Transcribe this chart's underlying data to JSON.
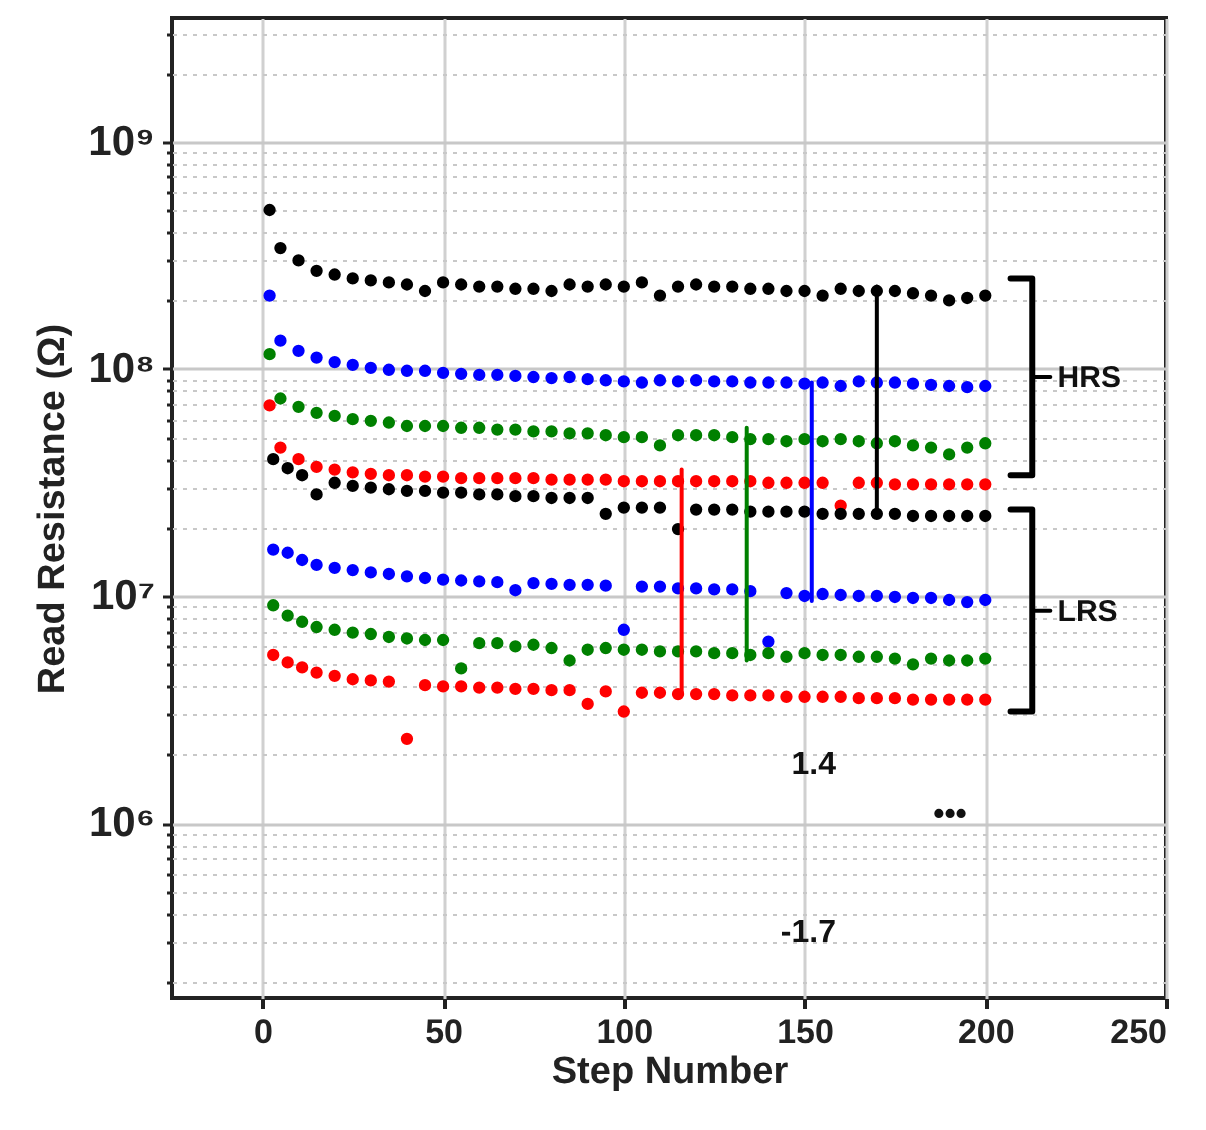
{
  "chart_data": {
    "type": "scatter",
    "xlabel": "Step Number",
    "ylabel": "Read Resistance (Ω)",
    "xlim": [
      -25,
      250
    ],
    "xticks": [
      0,
      50,
      100,
      150,
      200,
      250
    ],
    "ylim": [
      170000,
      3500000000
    ],
    "log": true,
    "yticks": [
      {
        "value": 200000,
        "label": null
      },
      {
        "value": 300000,
        "label": null
      },
      {
        "value": 400000,
        "label": null
      },
      {
        "value": 500000,
        "label": null
      },
      {
        "value": 600000,
        "label": null
      },
      {
        "value": 700000,
        "label": null
      },
      {
        "value": 800000,
        "label": null
      },
      {
        "value": 900000,
        "label": null
      },
      {
        "value": 1000000,
        "label": "10⁶"
      },
      {
        "value": 2000000,
        "label": null
      },
      {
        "value": 3000000,
        "label": null
      },
      {
        "value": 4000000,
        "label": null
      },
      {
        "value": 5000000,
        "label": null
      },
      {
        "value": 6000000,
        "label": null
      },
      {
        "value": 7000000,
        "label": null
      },
      {
        "value": 8000000,
        "label": null
      },
      {
        "value": 9000000,
        "label": null
      },
      {
        "value": 10000000,
        "label": "10⁷"
      },
      {
        "value": 20000000,
        "label": null
      },
      {
        "value": 30000000,
        "label": null
      },
      {
        "value": 40000000,
        "label": null
      },
      {
        "value": 50000000,
        "label": null
      },
      {
        "value": 60000000,
        "label": null
      },
      {
        "value": 70000000,
        "label": null
      },
      {
        "value": 80000000,
        "label": null
      },
      {
        "value": 90000000,
        "label": null
      },
      {
        "value": 100000000,
        "label": "10⁸"
      },
      {
        "value": 200000000,
        "label": null
      },
      {
        "value": 300000000,
        "label": null
      },
      {
        "value": 400000000,
        "label": null
      },
      {
        "value": 500000000,
        "label": null
      },
      {
        "value": 600000000,
        "label": null
      },
      {
        "value": 700000000,
        "label": null
      },
      {
        "value": 800000000,
        "label": null
      },
      {
        "value": 900000000,
        "label": null
      },
      {
        "value": 1000000000,
        "label": "10⁹"
      },
      {
        "value": 2000000000,
        "label": null
      },
      {
        "value": 3000000000,
        "label": null
      }
    ],
    "grid": true,
    "marker": "circle",
    "series": [
      {
        "color": "#000000",
        "x": [
          2,
          5,
          10,
          15,
          20,
          25,
          30,
          35,
          40,
          45,
          50,
          55,
          60,
          65,
          70,
          75,
          80,
          85,
          90,
          95,
          100,
          105,
          110,
          115,
          120,
          125,
          130,
          135,
          140,
          145,
          150,
          155,
          160,
          165,
          170,
          175,
          180,
          185,
          190,
          195,
          200
        ],
        "values": [
          500000000.0,
          340000000.0,
          300000000.0,
          270000000.0,
          260000000.0,
          250000000.0,
          245000000.0,
          240000000.0,
          235000000.0,
          220000000.0,
          240000000.0,
          235000000.0,
          230000000.0,
          230000000.0,
          225000000.0,
          225000000.0,
          220000000.0,
          235000000.0,
          230000000.0,
          235000000.0,
          230000000.0,
          240000000.0,
          210000000.0,
          230000000.0,
          235000000.0,
          230000000.0,
          230000000.0,
          225000000.0,
          225000000.0,
          220000000.0,
          220000000.0,
          210000000.0,
          225000000.0,
          220000000.0,
          220000000.0,
          220000000.0,
          215000000.0,
          210000000.0,
          200000000.0,
          205000000.0,
          210000000.0
        ]
      },
      {
        "color": "#0000ff",
        "x": [
          2,
          5,
          10,
          15,
          20,
          25,
          30,
          35,
          40,
          45,
          50,
          55,
          60,
          65,
          70,
          75,
          80,
          85,
          90,
          95,
          100,
          105,
          110,
          115,
          120,
          125,
          130,
          135,
          140,
          145,
          150,
          155,
          160,
          165,
          170,
          175,
          180,
          185,
          190,
          195,
          200
        ],
        "values": [
          210000000.0,
          133000000.0,
          120000000.0,
          112000000.0,
          107000000.0,
          104000000.0,
          101000000.0,
          99000000.0,
          98000000.0,
          98000000.0,
          96000000.0,
          95000000.0,
          94000000.0,
          94000000.0,
          93000000.0,
          92000000.0,
          91000000.0,
          92000000.0,
          90000000.0,
          89000000.0,
          88000000.0,
          87000000.0,
          89000000.0,
          88000000.0,
          89000000.0,
          88000000.0,
          88000000.0,
          87000000.0,
          87000000.0,
          87000000.0,
          86000000.0,
          87000000.0,
          84000000.0,
          88000000.0,
          87000000.0,
          87000000.0,
          86000000.0,
          85000000.0,
          84000000.0,
          83000000.0,
          84000000.0
        ]
      },
      {
        "color": "#008000",
        "x": [
          2,
          5,
          10,
          15,
          20,
          25,
          30,
          35,
          40,
          45,
          50,
          55,
          60,
          65,
          70,
          75,
          80,
          85,
          90,
          95,
          100,
          105,
          110,
          115,
          120,
          125,
          130,
          135,
          140,
          145,
          150,
          155,
          160,
          165,
          170,
          175,
          180,
          185,
          190,
          195,
          200
        ],
        "values": [
          116000000.0,
          74000000.0,
          68000000.0,
          64000000.0,
          62000000.0,
          60000000.0,
          59000000.0,
          58000000.0,
          56000000.0,
          56000000.0,
          56000000.0,
          55000000.0,
          55000000.0,
          54000000.0,
          54000000.0,
          53000000.0,
          53000000.0,
          52000000.0,
          52000000.0,
          51000000.0,
          50000000.0,
          50000000.0,
          46000000.0,
          51000000.0,
          51000000.0,
          51000000.0,
          50000000.0,
          49000000.0,
          49000000.0,
          48000000.0,
          49000000.0,
          48000000.0,
          49000000.0,
          48000000.0,
          47000000.0,
          48000000.0,
          46000000.0,
          45000000.0,
          42000000.0,
          45000000.0,
          47000000.0
        ]
      },
      {
        "color": "#ff0000",
        "x": [
          2,
          5,
          10,
          15,
          20,
          25,
          30,
          35,
          40,
          45,
          50,
          55,
          60,
          65,
          70,
          75,
          80,
          85,
          90,
          95,
          100,
          105,
          110,
          115,
          120,
          125,
          130,
          135,
          140,
          145,
          150,
          155,
          160,
          165,
          170,
          175,
          180,
          185,
          190,
          195,
          200
        ],
        "values": [
          69000000.0,
          45000000.0,
          40000000.0,
          37000000.0,
          36000000.0,
          35000000.0,
          34500000.0,
          34000000.0,
          34000000.0,
          33500000.0,
          33500000.0,
          33000000.0,
          33000000.0,
          33000000.0,
          33000000.0,
          33000000.0,
          32500000.0,
          32500000.0,
          32500000.0,
          32500000.0,
          32000000.0,
          32000000.0,
          32000000.0,
          32000000.0,
          32000000.0,
          32000000.0,
          32000000.0,
          32000000.0,
          31500000.0,
          31500000.0,
          31500000.0,
          31500000.0,
          25000000.0,
          31500000.0,
          31500000.0,
          31000000.0,
          31000000.0,
          31000000.0,
          31000000.0,
          31000000.0,
          31000000.0
        ]
      },
      {
        "color": "#000000",
        "x": [
          3,
          7,
          11,
          15,
          20,
          25,
          30,
          35,
          40,
          45,
          50,
          55,
          60,
          65,
          70,
          75,
          80,
          85,
          90,
          95,
          100,
          105,
          110,
          115,
          120,
          125,
          130,
          135,
          140,
          145,
          150,
          155,
          160,
          165,
          170,
          175,
          180,
          185,
          190,
          195,
          200
        ],
        "values": [
          40000000.0,
          36500000.0,
          34000000.0,
          28000000.0,
          31500000.0,
          30500000.0,
          30000000.0,
          29500000.0,
          29000000.0,
          29000000.0,
          28500000.0,
          28500000.0,
          28000000.0,
          28000000.0,
          27500000.0,
          27500000.0,
          27000000.0,
          27000000.0,
          27000000.0,
          23000000.0,
          24500000.0,
          24500000.0,
          24500000.0,
          19700000.0,
          24000000.0,
          24000000.0,
          24000000.0,
          23500000.0,
          23500000.0,
          23500000.0,
          23500000.0,
          23000000.0,
          23000000.0,
          23000000.0,
          23000000.0,
          23000000.0,
          22500000.0,
          22500000.0,
          22500000.0,
          22500000.0,
          22500000.0
        ]
      },
      {
        "color": "#0000ff",
        "x": [
          3,
          7,
          11,
          15,
          20,
          25,
          30,
          35,
          40,
          45,
          50,
          55,
          60,
          65,
          70,
          75,
          80,
          85,
          90,
          95,
          100,
          105,
          110,
          115,
          120,
          125,
          130,
          135,
          140,
          145,
          150,
          155,
          160,
          165,
          170,
          175,
          180,
          185,
          190,
          195,
          200
        ],
        "values": [
          16000000.0,
          15500000.0,
          14400000.0,
          13700000.0,
          13300000.0,
          13000000.0,
          12700000.0,
          12500000.0,
          12200000.0,
          12000000.0,
          11800000.0,
          11700000.0,
          11600000.0,
          11500000.0,
          10600000.0,
          11400000.0,
          11300000.0,
          11200000.0,
          11200000.0,
          11100000.0,
          7100000.0,
          11000000.0,
          11000000.0,
          10800000.0,
          10800000.0,
          10700000.0,
          10700000.0,
          10500000.0,
          6300000.0,
          10300000.0,
          10000000.0,
          10200000.0,
          10100000.0,
          10000000.0,
          10000000.0,
          9900000.0,
          9800000.0,
          9800000.0,
          9600000.0,
          9400000.0,
          9600000.0
        ]
      },
      {
        "color": "#008000",
        "x": [
          3,
          7,
          11,
          15,
          20,
          25,
          30,
          35,
          40,
          45,
          50,
          55,
          60,
          65,
          70,
          75,
          80,
          85,
          90,
          95,
          100,
          105,
          110,
          115,
          120,
          125,
          130,
          135,
          140,
          145,
          150,
          155,
          160,
          165,
          170,
          175,
          180,
          185,
          190,
          195,
          200
        ],
        "values": [
          9100000.0,
          8200000.0,
          7700000.0,
          7300000.0,
          7100000.0,
          6900000.0,
          6800000.0,
          6600000.0,
          6500000.0,
          6400000.0,
          6400000.0,
          4800000.0,
          6200000.0,
          6200000.0,
          6000000.0,
          6100000.0,
          5900000.0,
          5200000.0,
          5800000.0,
          5900000.0,
          5800000.0,
          5800000.0,
          5700000.0,
          5700000.0,
          5700000.0,
          5600000.0,
          5600000.0,
          5500000.0,
          5600000.0,
          5400000.0,
          5600000.0,
          5500000.0,
          5500000.0,
          5400000.0,
          5400000.0,
          5300000.0,
          5000000.0,
          5300000.0,
          5200000.0,
          5200000.0,
          5300000.0
        ]
      },
      {
        "color": "#ff0000",
        "x": [
          3,
          7,
          11,
          15,
          20,
          25,
          30,
          35,
          40,
          45,
          50,
          55,
          60,
          65,
          70,
          75,
          80,
          85,
          90,
          95,
          100,
          105,
          110,
          115,
          120,
          125,
          130,
          135,
          140,
          145,
          150,
          155,
          160,
          165,
          170,
          175,
          180,
          185,
          190,
          195,
          200
        ],
        "values": [
          5500000.0,
          5100000.0,
          4850000.0,
          4600000.0,
          4450000.0,
          4300000.0,
          4250000.0,
          4200000.0,
          2350000.0,
          4050000.0,
          4000000.0,
          4000000.0,
          3950000.0,
          3950000.0,
          3900000.0,
          3900000.0,
          3850000.0,
          3850000.0,
          3350000.0,
          3800000.0,
          3100000.0,
          3750000.0,
          3750000.0,
          3700000.0,
          3700000.0,
          3700000.0,
          3650000.0,
          3650000.0,
          3650000.0,
          3600000.0,
          3600000.0,
          3600000.0,
          3600000.0,
          3550000.0,
          3550000.0,
          3550000.0,
          3500000.0,
          3500000.0,
          3500000.0,
          3500000.0,
          3500000.0
        ]
      },
      {
        "type": "line",
        "marker": "none",
        "color": "#ff0000",
        "line_style": "solid",
        "x": [
          116,
          116
        ],
        "values": [
          36000000.0,
          3700000.0
        ]
      },
      {
        "type": "line",
        "marker": "none",
        "color": "#008000",
        "line_style": "solid",
        "x": [
          134,
          134
        ],
        "values": [
          55000000.0,
          5200000.0
        ]
      },
      {
        "type": "line",
        "marker": "none",
        "color": "#0000ff",
        "line_style": "solid",
        "x": [
          152,
          152
        ],
        "values": [
          87000000.0,
          9500000.0
        ]
      },
      {
        "type": "line",
        "marker": "none",
        "color": "#000000",
        "line_style": "solid",
        "x": [
          170,
          170
        ],
        "values": [
          230000000.0,
          24000000.0
        ]
      },
      {
        "type": "line",
        "marker": "none",
        "color": "#000000",
        "line_style": "solid",
        "x": [
          207,
          213,
          213,
          207
        ],
        "values": [
          250000000.0,
          250000000.0,
          34000000.0,
          34000000.0
        ]
      },
      {
        "type": "line",
        "marker": "none",
        "color": "#000000",
        "line_style": "solid",
        "x": [
          213,
          218
        ],
        "values": [
          92000000.0,
          92000000.0
        ]
      },
      {
        "type": "line",
        "marker": "none",
        "color": "#000000",
        "line_style": "solid",
        "x": [
          207,
          213,
          213,
          207
        ],
        "values": [
          24000000.0,
          24000000.0,
          3100000.0,
          3100000.0
        ]
      },
      {
        "type": "line",
        "marker": "none",
        "color": "#000000",
        "line_style": "solid",
        "x": [
          213,
          218
        ],
        "values": [
          8600000.0,
          8600000.0
        ]
      }
    ],
    "annotations": [
      {
        "text": "HRS",
        "x": 220,
        "y": 92000000.0
      },
      {
        "text": "LRS",
        "x": 220,
        "y": 8600000.0
      },
      "1.4",
      "-1.7",
      "•••"
    ]
  }
}
